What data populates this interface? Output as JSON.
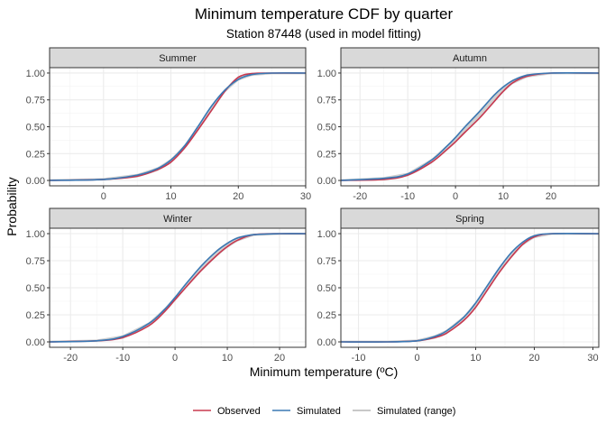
{
  "chart_data": {
    "type": "line",
    "title": "Minimum temperature CDF by quarter",
    "subtitle": "Station 87448 (used in model fitting)",
    "xlabel": "Minimum temperature (ºC)",
    "ylabel": "Probability",
    "grid": true,
    "legend_placement": "bottom",
    "legend": [
      {
        "name": "Observed",
        "color": "#c8384f",
        "kind": "line"
      },
      {
        "name": "Simulated",
        "color": "#3a78b4",
        "kind": "line"
      },
      {
        "name": "Simulated (range)",
        "color": "#c8c8c8",
        "kind": "band"
      }
    ],
    "y_ticks": [
      0.0,
      0.25,
      0.5,
      0.75,
      1.0
    ],
    "y_tick_labels": [
      "0.00",
      "0.25",
      "0.50",
      "0.75",
      "1.00"
    ],
    "ylim": [
      -0.05,
      1.05
    ],
    "panels": [
      {
        "label": "Summer",
        "xlim": [
          -8,
          30
        ],
        "x_ticks": [
          0,
          10,
          20,
          30
        ],
        "series": [
          {
            "name": "Observed",
            "x": [
              -8,
              0,
              5,
              8,
              10,
              12,
              14,
              16,
              18,
              20,
              22,
              25,
              30
            ],
            "y": [
              0.0,
              0.01,
              0.04,
              0.1,
              0.17,
              0.3,
              0.47,
              0.65,
              0.83,
              0.96,
              0.995,
              1.0,
              1.0
            ]
          },
          {
            "name": "Simulated",
            "x": [
              -8,
              0,
              5,
              8,
              10,
              12,
              14,
              16,
              18,
              20,
              22,
              25,
              30
            ],
            "y": [
              0.0,
              0.01,
              0.05,
              0.11,
              0.19,
              0.32,
              0.5,
              0.69,
              0.84,
              0.94,
              0.985,
              1.0,
              1.0
            ]
          }
        ]
      },
      {
        "label": "Autumn",
        "xlim": [
          -24,
          30
        ],
        "x_ticks": [
          -20,
          -10,
          0,
          10,
          20
        ],
        "series": [
          {
            "name": "Observed",
            "x": [
              -24,
              -15,
              -10,
              -5,
              -2,
              0,
              2,
              5,
              8,
              10,
              12,
              15,
              20,
              30
            ],
            "y": [
              0.0,
              0.01,
              0.05,
              0.17,
              0.28,
              0.36,
              0.45,
              0.58,
              0.73,
              0.83,
              0.91,
              0.97,
              1.0,
              1.0
            ]
          },
          {
            "name": "Simulated",
            "x": [
              -24,
              -15,
              -10,
              -5,
              -2,
              0,
              2,
              5,
              8,
              10,
              12,
              15,
              20,
              30
            ],
            "y": [
              0.0,
              0.02,
              0.06,
              0.19,
              0.31,
              0.4,
              0.5,
              0.64,
              0.79,
              0.87,
              0.93,
              0.98,
              1.0,
              1.0
            ]
          }
        ]
      },
      {
        "label": "Winter",
        "xlim": [
          -24,
          25
        ],
        "x_ticks": [
          -20,
          -10,
          0,
          10,
          20
        ],
        "series": [
          {
            "name": "Observed",
            "x": [
              -24,
              -15,
              -10,
              -5,
              -2,
              0,
              2,
              5,
              8,
              10,
              12,
              15,
              20,
              25
            ],
            "y": [
              0.0,
              0.01,
              0.04,
              0.15,
              0.28,
              0.39,
              0.5,
              0.66,
              0.8,
              0.88,
              0.94,
              0.99,
              1.0,
              1.0
            ]
          },
          {
            "name": "Simulated",
            "x": [
              -24,
              -15,
              -10,
              -5,
              -2,
              0,
              2,
              5,
              8,
              10,
              12,
              15,
              20,
              25
            ],
            "y": [
              0.0,
              0.01,
              0.05,
              0.17,
              0.3,
              0.41,
              0.53,
              0.7,
              0.84,
              0.91,
              0.96,
              0.99,
              1.0,
              1.0
            ]
          }
        ]
      },
      {
        "label": "Spring",
        "xlim": [
          -13,
          31
        ],
        "x_ticks": [
          -10,
          0,
          10,
          20,
          30
        ],
        "series": [
          {
            "name": "Observed",
            "x": [
              -13,
              -5,
              0,
              3,
              5,
              8,
              10,
              12,
              14,
              16,
              18,
              20,
              23,
              31
            ],
            "y": [
              0.0,
              0.0,
              0.01,
              0.04,
              0.08,
              0.2,
              0.32,
              0.48,
              0.64,
              0.78,
              0.9,
              0.97,
              1.0,
              1.0
            ]
          },
          {
            "name": "Simulated",
            "x": [
              -13,
              -5,
              0,
              3,
              5,
              8,
              10,
              12,
              14,
              16,
              18,
              20,
              23,
              31
            ],
            "y": [
              0.0,
              0.0,
              0.01,
              0.05,
              0.1,
              0.23,
              0.36,
              0.52,
              0.68,
              0.82,
              0.92,
              0.98,
              1.0,
              1.0
            ]
          }
        ]
      }
    ]
  }
}
